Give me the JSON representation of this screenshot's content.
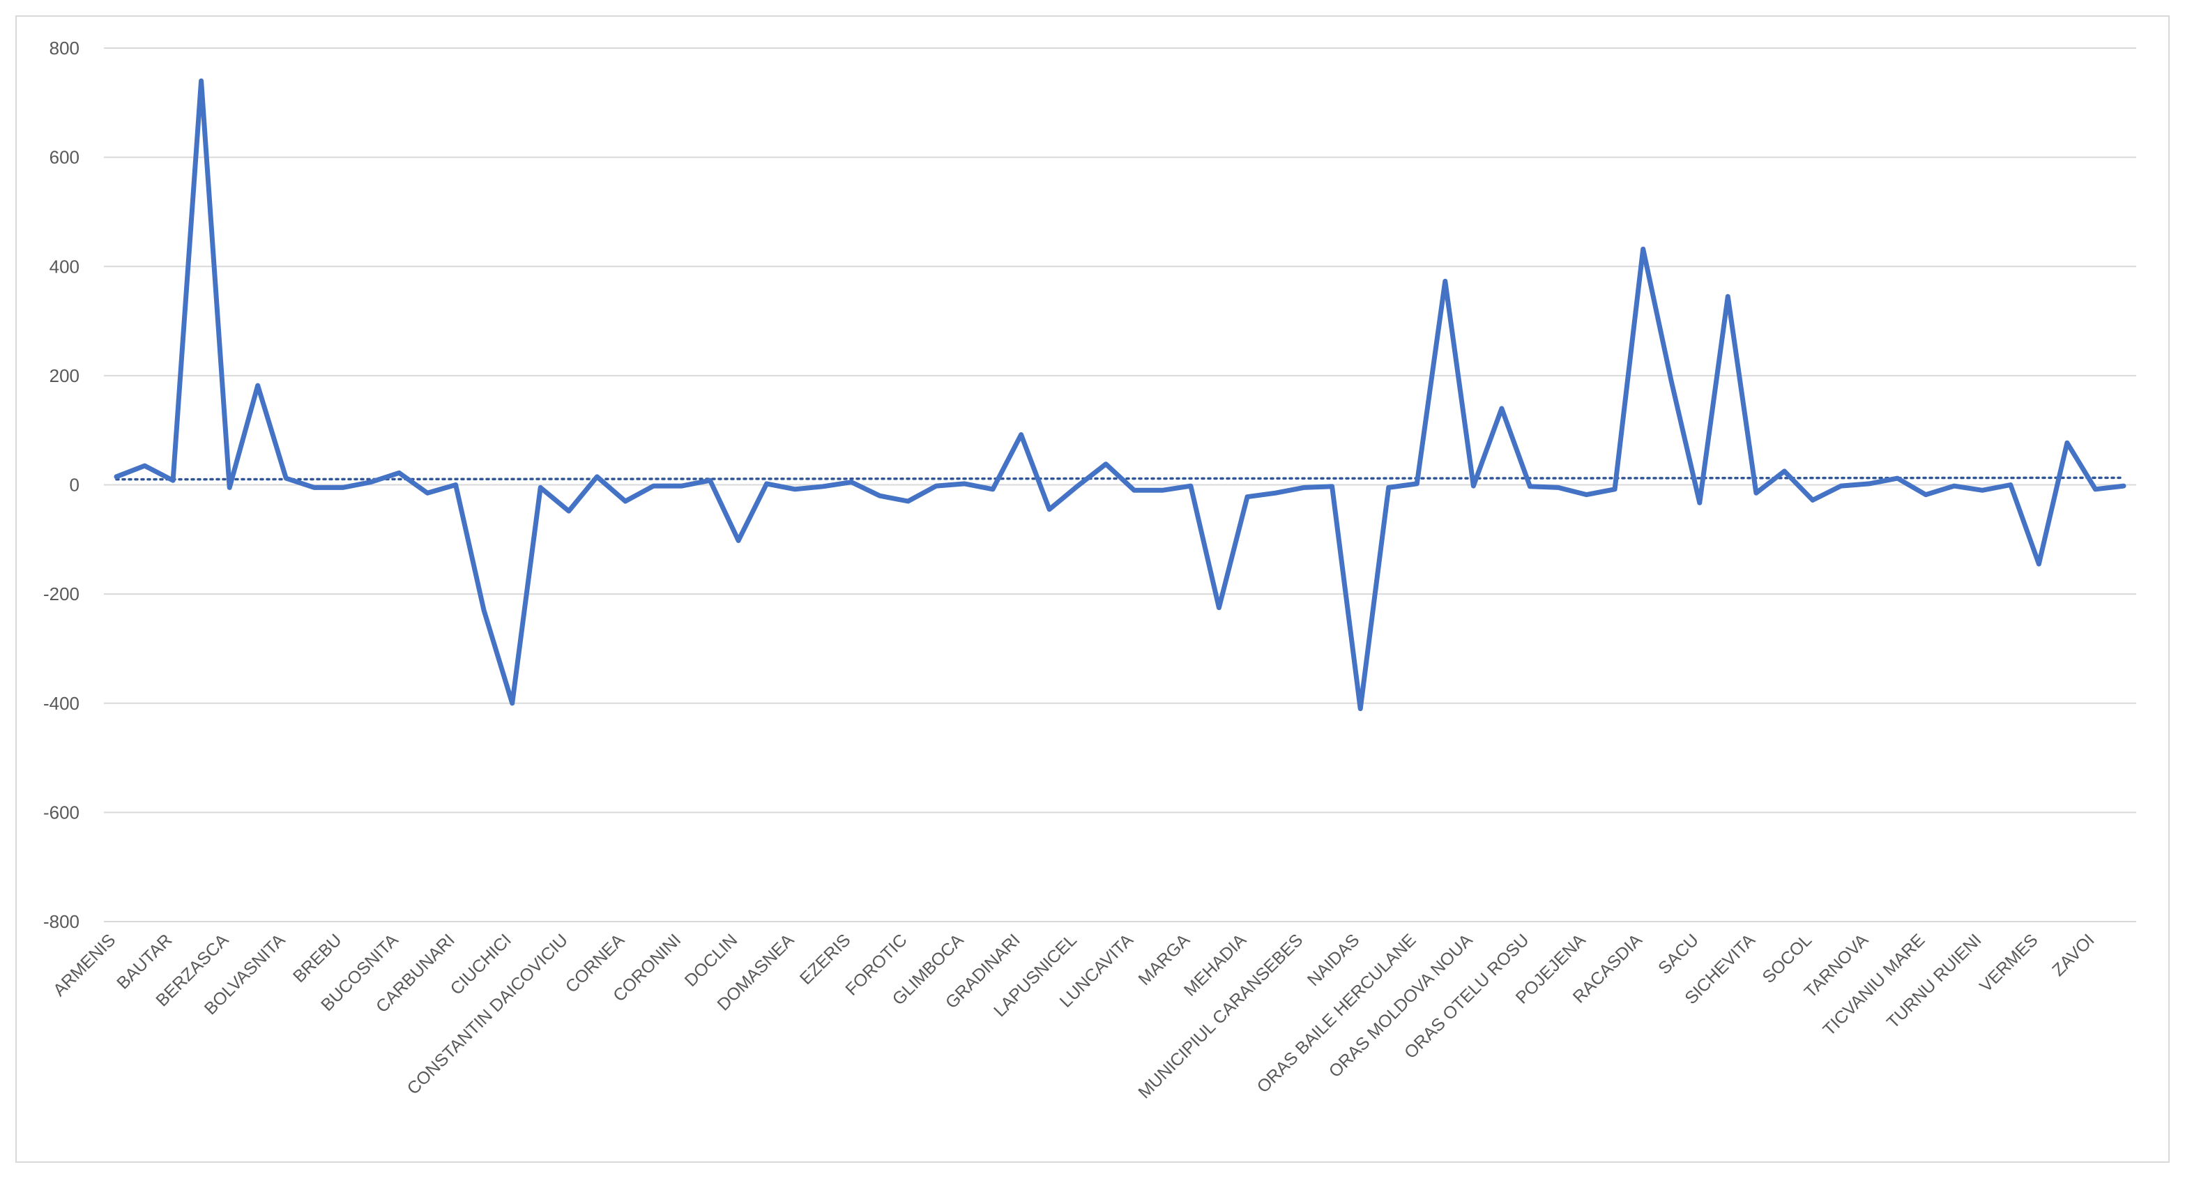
{
  "chart_data": {
    "type": "line",
    "title": "",
    "xlabel": "",
    "ylabel": "",
    "ylim": [
      -800,
      800
    ],
    "yticks": [
      "800",
      "600",
      "400",
      "200",
      "0",
      "-200",
      "-400",
      "-600",
      "-800"
    ],
    "ytick_values": [
      800,
      600,
      400,
      200,
      0,
      -200,
      -400,
      -600,
      -800
    ],
    "grid": true,
    "legend": "none",
    "categories": [
      "ARMENIS",
      "",
      "BAUTAR",
      "",
      "BERZASCA",
      "",
      "BOLVASNITA",
      "",
      "BREBU",
      "",
      "BUCOSNITA",
      "",
      "CARBUNARI",
      "",
      "CIUCHICI",
      "",
      "CONSTANTIN DAICOVICIU",
      "",
      "CORNEA",
      "",
      "CORONINI",
      "",
      "DOCLIN",
      "",
      "DOMASNEA",
      "",
      "EZERIS",
      "",
      "FOROTIC",
      "",
      "GLIMBOCA",
      "",
      "GRADINARI",
      "",
      "LAPUSNICEL",
      "",
      "LUNCAVITA",
      "",
      "MARGA",
      "",
      "MEHADIA",
      "",
      "MUNICIPIUL CARANSEBES",
      "",
      "NAIDAS",
      "",
      "ORAS BAILE HERCULANE",
      "",
      "ORAS MOLDOVA NOUA",
      "",
      "ORAS OTELU ROSU",
      "",
      "POJEJENA",
      "",
      "RACASDIA",
      "",
      "SACU",
      "",
      "SICHEVITA",
      "",
      "SOCOL",
      "",
      "TARNOVA",
      "",
      "TICVANIU MARE",
      "",
      "TURNU RUIENI",
      "",
      "VERMES",
      "",
      "ZAVOI",
      ""
    ],
    "series": [
      {
        "values": [
          15,
          35,
          8,
          740,
          -5,
          182,
          12,
          -5,
          -5,
          5,
          22,
          -15,
          0,
          -230,
          -400,
          -5,
          -48,
          15,
          -30,
          -2,
          -2,
          8,
          -102,
          2,
          -8,
          -3,
          5,
          -20,
          -30,
          -2,
          2,
          -8,
          92,
          -45,
          -2,
          38,
          -10,
          -10,
          -2,
          -225,
          -22,
          -15,
          -5,
          -3,
          -410,
          -5,
          2,
          373,
          -2,
          140,
          -3,
          -5,
          -18,
          -8,
          432,
          190,
          -33,
          345,
          -15,
          25,
          -28,
          -2,
          2,
          12,
          -18,
          -2,
          -10,
          0,
          -145,
          77,
          -8,
          -2
        ],
        "color": "#4472c4"
      }
    ],
    "trendline": {
      "style": "dotted",
      "start_value": 10,
      "end_value": 13,
      "color": "#2f5597"
    }
  }
}
